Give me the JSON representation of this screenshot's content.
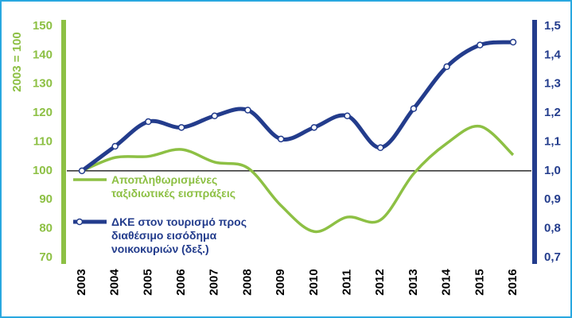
{
  "chart_data": {
    "type": "line",
    "y_label": "2003 = 100",
    "categories": [
      "2003",
      "2004",
      "2005",
      "2006",
      "2007",
      "2008",
      "2009",
      "2010",
      "2011",
      "2012",
      "2013",
      "2014",
      "2015",
      "2016"
    ],
    "series": [
      {
        "name": "Αποπληθωρισμένες ταξιδιωτικές εισπράξεις",
        "color": "#8dc044",
        "values": [
          100,
          104.6,
          105,
          107.4,
          103,
          101,
          88,
          79,
          84,
          83,
          99,
          109.5,
          115.4,
          105.5
        ]
      },
      {
        "name": "ΔΚΕ στον τουρισμό προς διαθέσιμο εισόδημα νοικοκυριών (δεξ.)",
        "color": "#233c8c",
        "axis": "y2",
        "markers": true,
        "values": [
          1.0,
          1.085,
          1.17,
          1.15,
          1.19,
          1.21,
          1.11,
          1.15,
          1.19,
          1.08,
          1.215,
          1.36,
          1.435,
          1.445
        ]
      }
    ],
    "ylim": [
      70,
      150
    ],
    "yticks": [
      70,
      80,
      90,
      100,
      110,
      120,
      130,
      140,
      150
    ],
    "y2lim": [
      0.7,
      1.5
    ],
    "y2ticks": [
      {
        "value": 0.7,
        "label": "0,7"
      },
      {
        "value": 0.8,
        "label": "0,8"
      },
      {
        "value": 0.9,
        "label": "0,9"
      },
      {
        "value": 1.0,
        "label": "1,0"
      },
      {
        "value": 1.1,
        "label": "1,1"
      },
      {
        "value": 1.2,
        "label": "1,2"
      },
      {
        "value": 1.3,
        "label": "1,3"
      },
      {
        "value": 1.4,
        "label": "1,4"
      },
      {
        "value": 1.5,
        "label": "1,5"
      }
    ],
    "hline": 100,
    "axis_color": "#233c8c",
    "y_color": "#8dc044"
  }
}
